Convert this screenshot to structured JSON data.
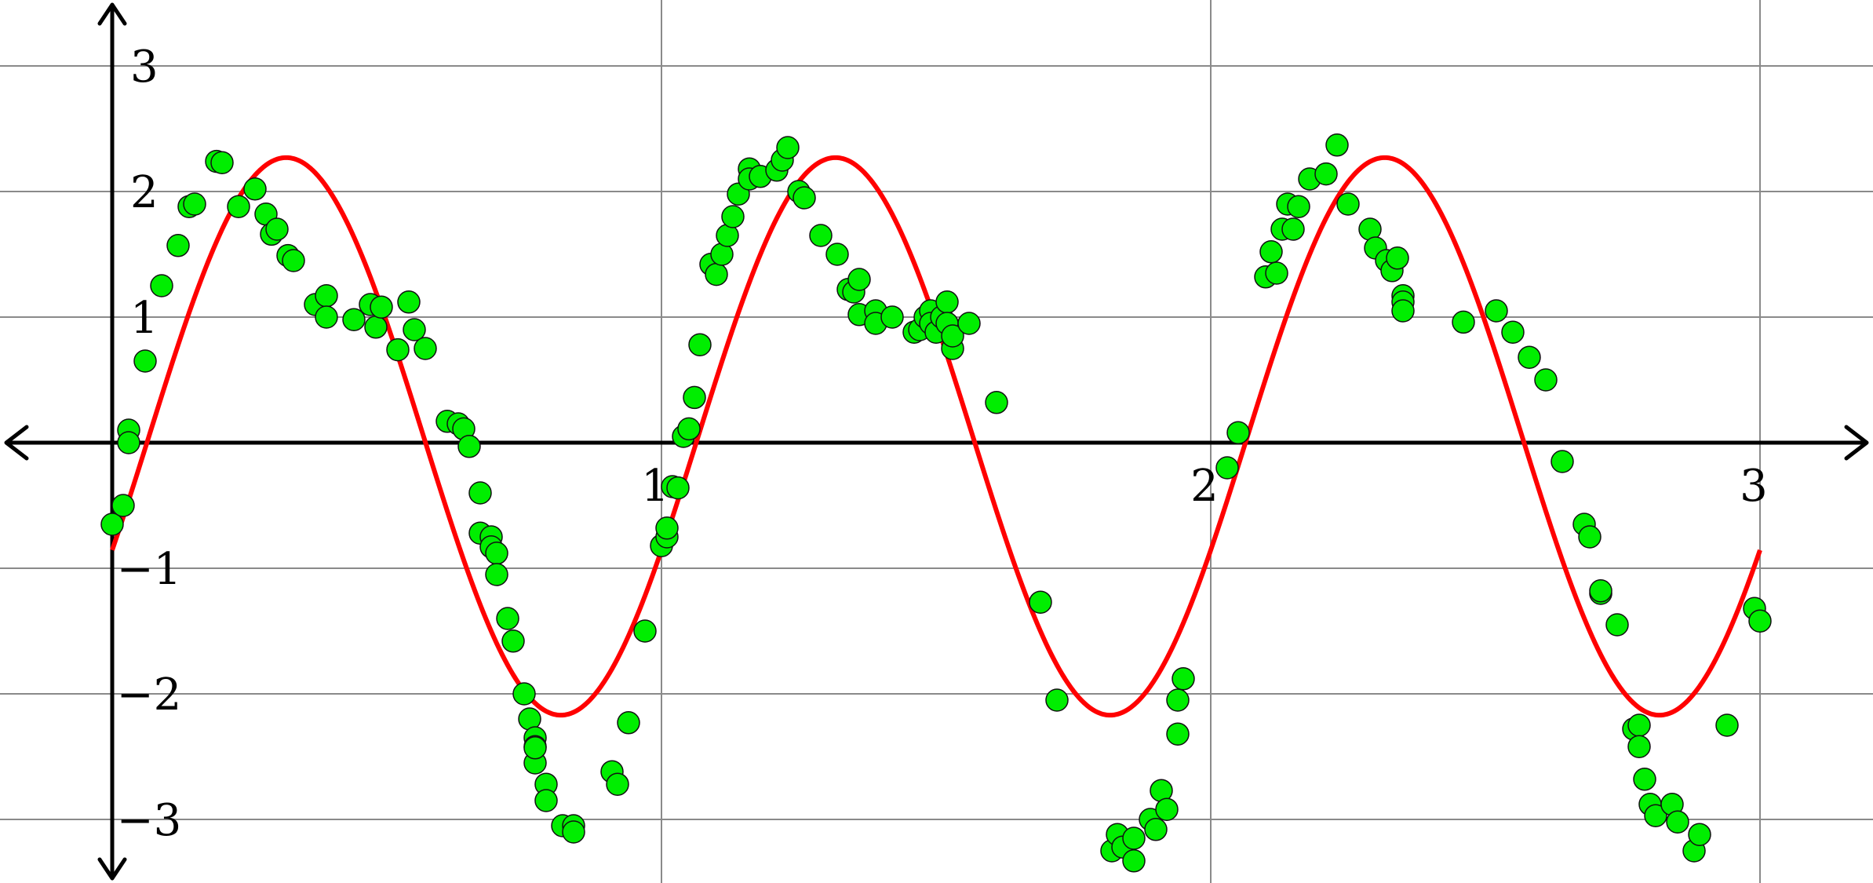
{
  "chart_data": {
    "type": "scatter",
    "title": "",
    "xlabel": "",
    "ylabel": "",
    "xlim": [
      -0.2,
      3.2
    ],
    "ylim": [
      -3.5,
      3.5
    ],
    "grid": true,
    "x_ticks": [
      {
        "value": 1,
        "label": "1"
      },
      {
        "value": 2,
        "label": "2"
      },
      {
        "value": 3,
        "label": "3"
      }
    ],
    "y_ticks": [
      {
        "value": 3,
        "label": "3"
      },
      {
        "value": 2,
        "label": "2"
      },
      {
        "value": 1,
        "label": "1"
      },
      {
        "value": -1,
        "label": "−1"
      },
      {
        "value": -2,
        "label": "−2"
      },
      {
        "value": -3,
        "label": "−3"
      }
    ],
    "series": [
      {
        "kind": "scatter",
        "color": "#00ee00",
        "points": [
          [
            0.0,
            -0.65
          ],
          [
            0.02,
            -0.5
          ],
          [
            0.03,
            0.1
          ],
          [
            0.03,
            0.0
          ],
          [
            0.06,
            0.65
          ],
          [
            0.09,
            1.25
          ],
          [
            0.12,
            1.57
          ],
          [
            0.14,
            1.88
          ],
          [
            0.15,
            1.9
          ],
          [
            0.19,
            2.24
          ],
          [
            0.2,
            2.23
          ],
          [
            0.23,
            1.88
          ],
          [
            0.26,
            2.02
          ],
          [
            0.28,
            1.82
          ],
          [
            0.29,
            1.66
          ],
          [
            0.3,
            1.7
          ],
          [
            0.32,
            1.49
          ],
          [
            0.33,
            1.45
          ],
          [
            0.37,
            1.1
          ],
          [
            0.39,
            1.17
          ],
          [
            0.39,
            1.0
          ],
          [
            0.44,
            0.98
          ],
          [
            0.47,
            1.1
          ],
          [
            0.48,
            0.92
          ],
          [
            0.49,
            1.08
          ],
          [
            0.52,
            0.74
          ],
          [
            0.54,
            1.12
          ],
          [
            0.55,
            0.9
          ],
          [
            0.57,
            0.75
          ],
          [
            0.61,
            0.17
          ],
          [
            0.63,
            0.15
          ],
          [
            0.64,
            0.11
          ],
          [
            0.65,
            -0.03
          ],
          [
            0.67,
            -0.4
          ],
          [
            0.67,
            -0.72
          ],
          [
            0.69,
            -0.75
          ],
          [
            0.69,
            -0.83
          ],
          [
            0.7,
            -0.88
          ],
          [
            0.7,
            -1.05
          ],
          [
            0.72,
            -1.4
          ],
          [
            0.73,
            -1.58
          ],
          [
            0.75,
            -2.0
          ],
          [
            0.76,
            -2.2
          ],
          [
            0.77,
            -2.35
          ],
          [
            0.77,
            -2.42
          ],
          [
            0.77,
            -2.55
          ],
          [
            0.77,
            -2.43
          ],
          [
            0.79,
            -2.72
          ],
          [
            0.79,
            -2.85
          ],
          [
            0.82,
            -3.05
          ],
          [
            0.84,
            -3.05
          ],
          [
            0.84,
            -3.1
          ],
          [
            0.91,
            -2.62
          ],
          [
            0.92,
            -2.72
          ],
          [
            0.94,
            -2.23
          ],
          [
            0.97,
            -1.5
          ],
          [
            1.0,
            -0.82
          ],
          [
            1.01,
            -0.75
          ],
          [
            1.01,
            -0.68
          ],
          [
            1.02,
            -0.35
          ],
          [
            1.03,
            -0.36
          ],
          [
            1.04,
            0.05
          ],
          [
            1.05,
            0.11
          ],
          [
            1.06,
            0.36
          ],
          [
            1.07,
            0.78
          ],
          [
            1.09,
            1.42
          ],
          [
            1.1,
            1.34
          ],
          [
            1.11,
            1.5
          ],
          [
            1.12,
            1.65
          ],
          [
            1.13,
            1.8
          ],
          [
            1.14,
            1.98
          ],
          [
            1.16,
            2.18
          ],
          [
            1.16,
            2.1
          ],
          [
            1.18,
            2.12
          ],
          [
            1.21,
            2.17
          ],
          [
            1.22,
            2.25
          ],
          [
            1.23,
            2.35
          ],
          [
            1.25,
            2.0
          ],
          [
            1.26,
            1.95
          ],
          [
            1.29,
            1.65
          ],
          [
            1.32,
            1.5
          ],
          [
            1.34,
            1.22
          ],
          [
            1.35,
            1.2
          ],
          [
            1.36,
            1.3
          ],
          [
            1.36,
            1.02
          ],
          [
            1.39,
            1.05
          ],
          [
            1.39,
            0.95
          ],
          [
            1.42,
            1.0
          ],
          [
            1.46,
            0.88
          ],
          [
            1.47,
            0.9
          ],
          [
            1.48,
            1.0
          ],
          [
            1.49,
            1.05
          ],
          [
            1.49,
            0.95
          ],
          [
            1.5,
            0.88
          ],
          [
            1.51,
            1.0
          ],
          [
            1.52,
            1.12
          ],
          [
            1.52,
            0.95
          ],
          [
            1.53,
            0.75
          ],
          [
            1.53,
            0.85
          ],
          [
            1.56,
            0.95
          ],
          [
            1.61,
            0.32
          ],
          [
            1.69,
            -1.27
          ],
          [
            1.72,
            -2.05
          ],
          [
            1.82,
            -3.25
          ],
          [
            1.83,
            -3.12
          ],
          [
            1.84,
            -3.22
          ],
          [
            1.86,
            -3.33
          ],
          [
            1.86,
            -3.15
          ],
          [
            1.89,
            -3.0
          ],
          [
            1.9,
            -3.08
          ],
          [
            1.91,
            -2.77
          ],
          [
            1.92,
            -2.92
          ],
          [
            1.94,
            -2.32
          ],
          [
            1.94,
            -2.05
          ],
          [
            1.95,
            -1.88
          ],
          [
            2.03,
            -0.2
          ],
          [
            2.05,
            0.08
          ],
          [
            2.1,
            1.32
          ],
          [
            2.11,
            1.52
          ],
          [
            2.12,
            1.35
          ],
          [
            2.13,
            1.7
          ],
          [
            2.14,
            1.9
          ],
          [
            2.15,
            1.7
          ],
          [
            2.16,
            1.88
          ],
          [
            2.18,
            2.1
          ],
          [
            2.21,
            2.14
          ],
          [
            2.23,
            2.37
          ],
          [
            2.25,
            1.9
          ],
          [
            2.29,
            1.7
          ],
          [
            2.3,
            1.55
          ],
          [
            2.32,
            1.45
          ],
          [
            2.33,
            1.37
          ],
          [
            2.34,
            1.47
          ],
          [
            2.35,
            1.17
          ],
          [
            2.35,
            1.12
          ],
          [
            2.35,
            1.05
          ],
          [
            2.46,
            0.96
          ],
          [
            2.52,
            1.05
          ],
          [
            2.55,
            0.88
          ],
          [
            2.58,
            0.68
          ],
          [
            2.61,
            0.5
          ],
          [
            2.64,
            -0.15
          ],
          [
            2.68,
            -0.65
          ],
          [
            2.69,
            -0.75
          ],
          [
            2.71,
            -1.2
          ],
          [
            2.71,
            -1.18
          ],
          [
            2.74,
            -1.45
          ],
          [
            2.77,
            -2.28
          ],
          [
            2.78,
            -2.25
          ],
          [
            2.78,
            -2.42
          ],
          [
            2.79,
            -2.68
          ],
          [
            2.8,
            -2.88
          ],
          [
            2.81,
            -2.97
          ],
          [
            2.84,
            -2.88
          ],
          [
            2.85,
            -3.02
          ],
          [
            2.88,
            -3.25
          ],
          [
            2.89,
            -3.12
          ],
          [
            2.94,
            -2.25
          ],
          [
            2.99,
            -1.32
          ],
          [
            3.0,
            -1.42
          ]
        ]
      },
      {
        "kind": "curve",
        "color": "#ff0000",
        "x_range": [
          0.0,
          3.0
        ]
      }
    ]
  }
}
